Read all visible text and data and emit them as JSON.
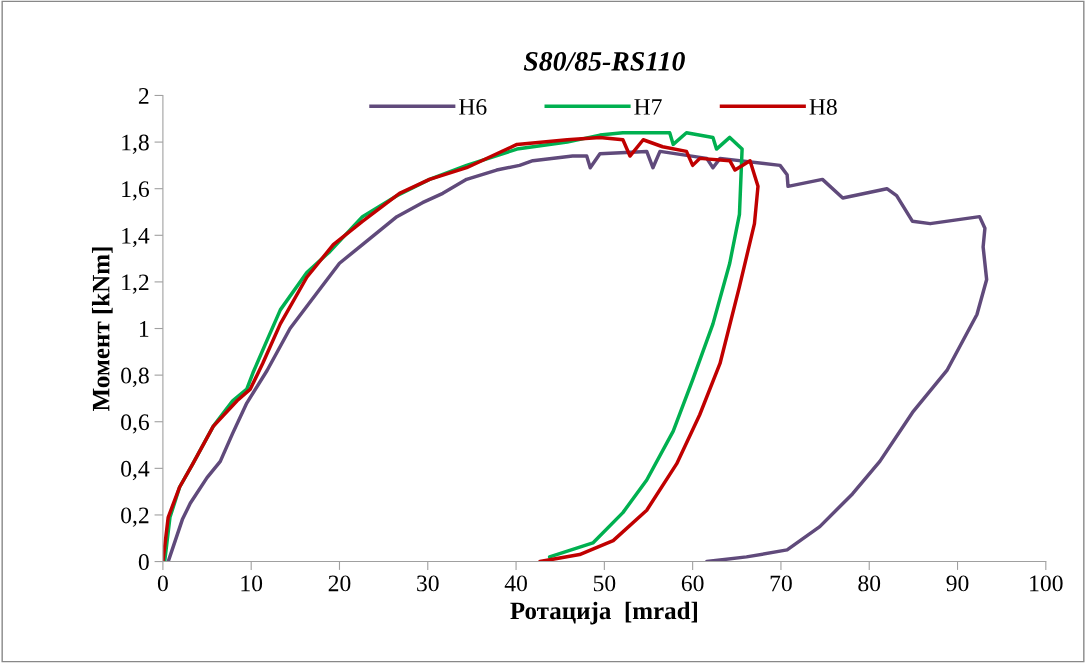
{
  "chart_data": {
    "type": "line",
    "title": "S80/85-RS110",
    "xlabel": "Ротација  [mrad]",
    "ylabel": "Момент [kNm]",
    "xlim": [
      0,
      100
    ],
    "xticks": [
      0,
      10,
      20,
      30,
      40,
      50,
      60,
      70,
      80,
      90,
      100
    ],
    "ylim": [
      0,
      2
    ],
    "yticks": [
      0,
      {
        "value": 0.2,
        "label": "0,2"
      },
      {
        "value": 0.4,
        "label": "0,4"
      },
      {
        "value": 0.6,
        "label": "0,6"
      },
      {
        "value": 0.8,
        "label": "0,8"
      },
      1,
      {
        "value": 1.2,
        "label": "1,2"
      },
      {
        "value": 1.4,
        "label": "1,4"
      },
      {
        "value": 1.6,
        "label": "1,6"
      },
      {
        "value": 1.8,
        "label": "1,8"
      },
      2
    ],
    "grid": false,
    "legend": "top",
    "marker": "none",
    "line_style": "solid",
    "series": [
      {
        "name": "H6",
        "color": "#604a7b",
        "x": [
          0.6,
          1.4,
          2.2,
          3.1,
          5.0,
          6.5,
          7.9,
          9.5,
          11.8,
          14.4,
          17.4,
          20.0,
          22.6,
          26.5,
          29.4,
          31.7,
          34.4,
          37.8,
          40.4,
          41.9,
          46.4,
          48.0,
          48.4,
          49.5,
          54.8,
          55.5,
          56.3,
          61.6,
          62.3,
          63.1,
          69.9,
          70.7,
          70.8,
          74.7,
          77.0,
          82.0,
          83.1,
          84.9,
          86.9,
          92.5,
          93.1,
          92.9,
          93.3,
          92.2,
          88.8,
          84.9,
          81.2,
          78.1,
          74.4,
          70.7,
          66.1,
          61.6
        ],
        "values": [
          0,
          0.09,
          0.18,
          0.25,
          0.36,
          0.43,
          0.55,
          0.68,
          0.82,
          1.0,
          1.15,
          1.28,
          1.36,
          1.48,
          1.54,
          1.58,
          1.64,
          1.68,
          1.7,
          1.72,
          1.74,
          1.74,
          1.69,
          1.75,
          1.76,
          1.69,
          1.76,
          1.73,
          1.69,
          1.73,
          1.7,
          1.66,
          1.61,
          1.64,
          1.56,
          1.6,
          1.57,
          1.46,
          1.45,
          1.48,
          1.43,
          1.35,
          1.21,
          1.06,
          0.82,
          0.64,
          0.43,
          0.29,
          0.15,
          0.05,
          0.02,
          0
        ]
      },
      {
        "name": "H7",
        "color": "#00b050",
        "x": [
          0.2,
          0.8,
          1.9,
          3.4,
          5.7,
          7.9,
          9.5,
          10.2,
          11.8,
          13.3,
          16.3,
          18.9,
          22.6,
          26.5,
          30.2,
          34.4,
          40.1,
          45.8,
          49.5,
          52.1,
          53.2,
          57.4,
          57.8,
          59.3,
          62.3,
          62.7,
          64.2,
          65.6,
          65.3,
          64.2,
          62.3,
          60.0,
          57.8,
          54.8,
          52.1,
          48.7,
          43.8
        ],
        "values": [
          0,
          0.19,
          0.32,
          0.42,
          0.58,
          0.69,
          0.74,
          0.81,
          0.95,
          1.08,
          1.24,
          1.33,
          1.48,
          1.57,
          1.64,
          1.7,
          1.77,
          1.8,
          1.83,
          1.84,
          1.84,
          1.84,
          1.79,
          1.84,
          1.82,
          1.77,
          1.82,
          1.77,
          1.49,
          1.28,
          1.02,
          0.78,
          0.56,
          0.35,
          0.21,
          0.08,
          0.02
        ]
      },
      {
        "name": "H8",
        "color": "#c00000",
        "x": [
          0,
          0.6,
          1.9,
          3.4,
          5.7,
          8.4,
          9.9,
          11.3,
          13.3,
          16.3,
          19.3,
          22.6,
          26.8,
          30.2,
          34.4,
          40.1,
          45.8,
          49.5,
          52.1,
          52.9,
          54.4,
          56.6,
          59.3,
          60.0,
          60.8,
          64.2,
          64.8,
          66.5,
          67.4,
          67.0,
          65.3,
          63.1,
          60.8,
          58.2,
          54.8,
          51.0,
          47.2,
          42.7
        ],
        "values": [
          0,
          0.19,
          0.32,
          0.42,
          0.58,
          0.69,
          0.74,
          0.85,
          1.02,
          1.22,
          1.36,
          1.46,
          1.58,
          1.64,
          1.69,
          1.79,
          1.81,
          1.82,
          1.81,
          1.74,
          1.81,
          1.78,
          1.76,
          1.7,
          1.73,
          1.72,
          1.68,
          1.72,
          1.61,
          1.45,
          1.18,
          0.85,
          0.63,
          0.42,
          0.22,
          0.09,
          0.03,
          0
        ]
      }
    ]
  }
}
